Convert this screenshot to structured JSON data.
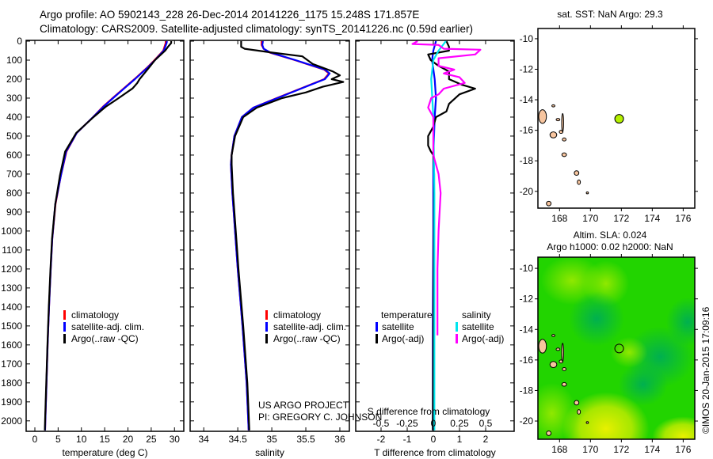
{
  "header": {
    "line1": "Argo profile: AO 5902143_228 26-Dec-2014 20141226_1175 15.248S 171.857E",
    "line2": "Climatology: CARS2009. Satellite-adjusted climatology: synTS_20141226.nc (0.59d earlier)"
  },
  "credits": {
    "project": "US ARGO PROJECT",
    "pi": "PI: GREGORY C. JOHNSON",
    "stamp": "©IMOS 20-Jan-2015 17:09:16"
  },
  "colors": {
    "climatology": "#ff0000",
    "satellite": "#0000ff",
    "argo": "#000000",
    "sal_satellite": "#00e5ee",
    "sal_argo": "#ff00ff",
    "land": "#f7c59f",
    "float_marker": "#b4f000"
  },
  "chart_data": [
    {
      "id": "temperature",
      "type": "line",
      "xlabel": "temperature (deg C)",
      "ylabel": "",
      "xlim": [
        -1.87,
        32.0
      ],
      "ylim": [
        2055,
        0
      ],
      "xticks": [
        0,
        5,
        10,
        15,
        20,
        25,
        30
      ],
      "yticks": [
        0,
        100,
        200,
        300,
        400,
        500,
        600,
        700,
        800,
        900,
        1000,
        1100,
        1200,
        1300,
        1400,
        1500,
        1600,
        1700,
        1800,
        1900,
        2000
      ],
      "legend": [
        "climatology",
        "satellite-adj. clim.",
        "Argo(..raw -QC)"
      ],
      "legend_placement": "lower-left",
      "series": [
        {
          "name": "climatology",
          "color_key": "climatology",
          "depth": [
            0,
            10,
            50,
            100,
            137,
            200,
            249,
            300,
            346,
            400,
            483,
            582,
            707,
            858,
            1040,
            1200,
            1400,
            1600,
            1800,
            2000,
            2050
          ],
          "values": [
            28.1,
            28.1,
            27.6,
            25.7,
            24.2,
            21.4,
            19.1,
            16.7,
            14.6,
            12.5,
            9.0,
            6.8,
            5.6,
            4.45,
            3.75,
            3.4,
            3.05,
            2.75,
            2.5,
            2.25,
            2.2
          ]
        },
        {
          "name": "satellite-adj. clim.",
          "color_key": "satellite",
          "depth": [
            0,
            10,
            50,
            100,
            137,
            200,
            249,
            300,
            346,
            400,
            483,
            582,
            707,
            858,
            1040,
            1200,
            1400,
            1600,
            1800,
            2000,
            2050
          ],
          "values": [
            28.4,
            28.3,
            27.7,
            25.8,
            24.3,
            21.5,
            19.2,
            16.8,
            14.7,
            12.5,
            9.0,
            6.7,
            5.6,
            4.4,
            3.75,
            3.4,
            3.05,
            2.75,
            2.5,
            2.25,
            2.2
          ]
        },
        {
          "name": "Argo(..raw -QC)",
          "color_key": "argo",
          "depth": [
            0,
            10,
            30,
            50,
            100,
            137,
            170,
            200,
            221,
            249,
            300,
            346,
            400,
            483,
            582,
            707,
            858,
            1040,
            1200,
            1400,
            1600,
            1800,
            2000,
            2050
          ],
          "values": [
            29.3,
            29.3,
            28.6,
            28.0,
            25.8,
            24.6,
            23.5,
            22.5,
            22.0,
            21.0,
            18.0,
            15.2,
            12.6,
            8.9,
            6.5,
            5.4,
            4.4,
            3.7,
            3.35,
            3.0,
            2.7,
            2.45,
            2.2,
            2.15
          ]
        }
      ]
    },
    {
      "id": "salinity",
      "type": "line",
      "xlabel": "salinity",
      "xlim": [
        33.8,
        36.14
      ],
      "ylim": [
        2055,
        0
      ],
      "xticks": [
        34,
        34.5,
        35,
        35.5,
        36
      ],
      "xtick_labels": [
        "34",
        "34.5",
        "35",
        "35.5",
        "36"
      ],
      "legend": [
        "climatology",
        "satellite-adj. clim.",
        "Argo(..raw -QC)"
      ],
      "legend_placement": "lower-left",
      "series": [
        {
          "name": "climatology",
          "color_key": "climatology",
          "depth": [
            0,
            20,
            40,
            60,
            100,
            150,
            170,
            200,
            250,
            300,
            350,
            400,
            500,
            600,
            650,
            800,
            1000,
            1200,
            1500,
            1800,
            2050
          ],
          "values": [
            34.85,
            34.85,
            34.88,
            34.97,
            35.34,
            35.77,
            35.84,
            35.77,
            35.42,
            35.07,
            34.73,
            34.56,
            34.45,
            34.41,
            34.4,
            34.42,
            34.46,
            34.5,
            34.57,
            34.63,
            34.66
          ]
        },
        {
          "name": "satellite-adj. clim.",
          "color_key": "satellite",
          "depth": [
            0,
            20,
            40,
            60,
            100,
            150,
            170,
            200,
            250,
            300,
            350,
            400,
            500,
            600,
            650,
            800,
            1000,
            1200,
            1500,
            1800,
            2050
          ],
          "values": [
            34.87,
            34.86,
            34.88,
            34.98,
            35.35,
            35.78,
            35.85,
            35.78,
            35.43,
            35.08,
            34.73,
            34.56,
            34.45,
            34.41,
            34.4,
            34.42,
            34.46,
            34.5,
            34.57,
            34.63,
            34.66
          ]
        },
        {
          "name": "Argo(..raw -QC)",
          "color_key": "argo",
          "depth": [
            0,
            30,
            40,
            60,
            80,
            120,
            160,
            180,
            200,
            215,
            240,
            270,
            300,
            350,
            400,
            500,
            600,
            650,
            800,
            1000,
            1200,
            1500,
            1800,
            2050
          ],
          "values": [
            34.55,
            34.55,
            34.6,
            35.0,
            35.45,
            35.6,
            35.9,
            36.0,
            35.88,
            36.05,
            35.75,
            35.5,
            35.15,
            34.78,
            34.58,
            34.46,
            34.41,
            34.41,
            34.43,
            34.47,
            34.51,
            34.58,
            34.64,
            34.67
          ]
        }
      ]
    },
    {
      "id": "difference",
      "type": "line",
      "xlabel": "T difference from climatology",
      "xlabel_top": "S difference from climatology",
      "xlim": [
        -2.97,
        3.09
      ],
      "xlim_salinity": [
        -0.742,
        0.773
      ],
      "ylim": [
        2055,
        0
      ],
      "xticks": [
        -2,
        -1,
        0,
        1,
        2
      ],
      "xtick_labels": [
        "-2",
        "-1",
        "0",
        "1",
        "2"
      ],
      "sticks": [
        -0.5,
        -0.25,
        0,
        0.25,
        0.5
      ],
      "stick_labels": [
        "-0.5",
        "-0.25",
        "0",
        "0.25",
        "0.5"
      ],
      "legend_headers": [
        "temperature",
        "salinity"
      ],
      "legend": [
        "satellite",
        "Argo(-adj)",
        "satellite",
        "Argo(-adj)"
      ],
      "legend_placement": "lower-center",
      "series": [
        {
          "name": "T satellite",
          "color_key": "satellite",
          "axis": "T",
          "depth": [
            0,
            50,
            100,
            200,
            300,
            400,
            600,
            1000,
            1500,
            2050
          ],
          "values": [
            0.1,
            0.0,
            -0.05,
            0.05,
            0.1,
            0.05,
            0.0,
            0.0,
            -0.02,
            -0.02
          ]
        },
        {
          "name": "T Argo(-adj)",
          "color_key": "argo",
          "axis": "T",
          "depth": [
            0,
            30,
            50,
            70,
            100,
            130,
            160,
            200,
            230,
            250,
            280,
            330,
            370,
            400,
            450,
            500,
            550,
            580,
            600,
            700,
            1000,
            1500,
            2050
          ],
          "values": [
            0.5,
            0.6,
            0.6,
            -0.2,
            -0.1,
            0.2,
            0.6,
            0.6,
            1.1,
            1.6,
            1.0,
            0.6,
            0.5,
            0.1,
            0.0,
            -0.2,
            -0.2,
            -0.1,
            0.0,
            0.03,
            0.02,
            0.0,
            -0.02
          ]
        },
        {
          "name": "S satellite",
          "color_key": "sal_satellite",
          "axis": "S",
          "depth": [
            0,
            50,
            100,
            200,
            400,
            800,
            1200,
            1600,
            2050
          ],
          "values": [
            0.12,
            0.05,
            0.0,
            -0.02,
            0.0,
            0.01,
            0.01,
            0.01,
            0.01
          ]
        },
        {
          "name": "S Argo(-adj)",
          "color_key": "sal_argo",
          "axis": "S",
          "depth": [
            0,
            15,
            20,
            40,
            45,
            70,
            90,
            130,
            150,
            170,
            190,
            220,
            250,
            280,
            300,
            350,
            400,
            500,
            600,
            700,
            800,
            900,
            1000,
            1200,
            1400,
            1550
          ],
          "values": [
            -0.15,
            -0.2,
            0.05,
            0.1,
            0.45,
            0.4,
            0.05,
            0.05,
            0.2,
            0.1,
            0.25,
            0.3,
            0.1,
            0.05,
            -0.02,
            -0.05,
            0.0,
            0.0,
            0.0,
            0.05,
            0.07,
            0.06,
            0.05,
            0.04,
            0.04,
            0.04
          ]
        }
      ]
    },
    {
      "id": "map-sst",
      "type": "scatter",
      "title": "sat. SST: NaN Argo: 29.3",
      "xlim": [
        166.6,
        176.75
      ],
      "ylim": [
        -21.1,
        -9.33
      ],
      "xticks": [
        168,
        170,
        172,
        174,
        176
      ],
      "yticks": [
        -10,
        -12,
        -14,
        -16,
        -18,
        -20
      ],
      "float": {
        "lon": 171.857,
        "lat": -15.248,
        "filled": true
      }
    },
    {
      "id": "map-sla",
      "type": "heatmap",
      "title": "Altim. SLA: 0.024",
      "subtitle": "Argo h1000: 0.02 h2000: NaN",
      "xlim": [
        166.6,
        176.75
      ],
      "ylim": [
        -21.19,
        -9.27
      ],
      "xticks": [
        168,
        170,
        172,
        174,
        176
      ],
      "yticks": [
        -10,
        -12,
        -14,
        -16,
        -18,
        -20
      ],
      "float": {
        "lon": 171.857,
        "lat": -15.248,
        "filled": false
      }
    }
  ],
  "islands": [
    {
      "lon": 166.9,
      "lat": -15.1,
      "rx": 0.25,
      "ry": 0.45
    },
    {
      "lon": 167.6,
      "lat": -16.3,
      "rx": 0.22,
      "ry": 0.2
    },
    {
      "lon": 167.9,
      "lat": -15.3,
      "rx": 0.12,
      "ry": 0.08
    },
    {
      "lon": 168.1,
      "lat": -16.1,
      "rx": 0.12,
      "ry": 0.1
    },
    {
      "lon": 168.3,
      "lat": -16.6,
      "rx": 0.12,
      "ry": 0.1
    },
    {
      "lon": 168.3,
      "lat": -17.6,
      "rx": 0.15,
      "ry": 0.12
    },
    {
      "lon": 169.1,
      "lat": -18.8,
      "rx": 0.15,
      "ry": 0.15
    },
    {
      "lon": 169.25,
      "lat": -19.4,
      "rx": 0.1,
      "ry": 0.15
    },
    {
      "lon": 169.8,
      "lat": -20.1,
      "rx": 0.07,
      "ry": 0.05
    },
    {
      "lon": 167.3,
      "lat": -20.8,
      "rx": 0.15,
      "ry": 0.15
    },
    {
      "lon": 167.6,
      "lat": -14.4,
      "rx": 0.1,
      "ry": 0.07
    },
    {
      "lon": 168.2,
      "lat": -15.5,
      "rx": 0.04,
      "ry": 0.6
    }
  ]
}
